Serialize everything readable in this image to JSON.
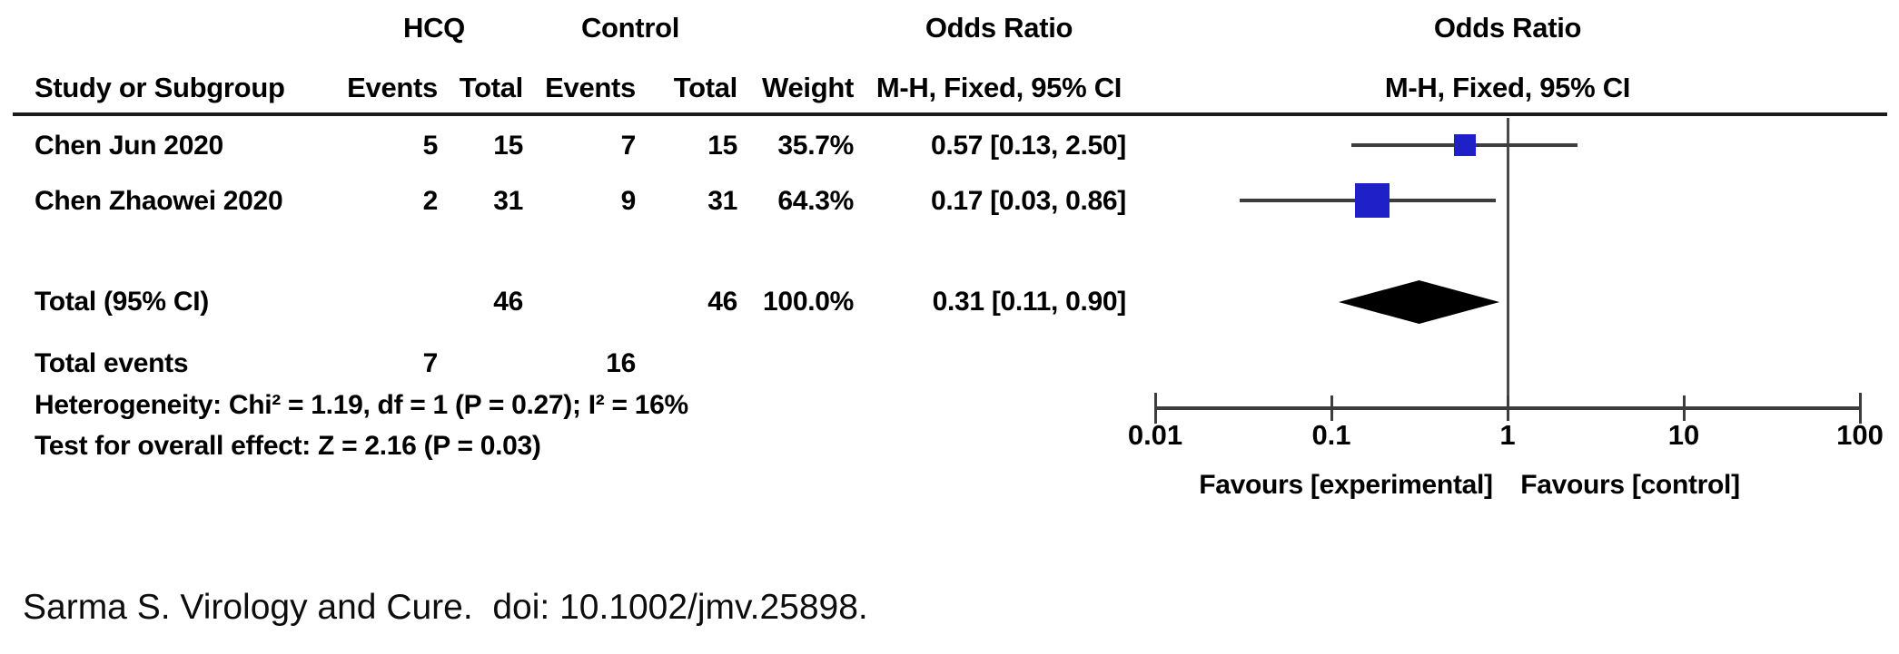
{
  "header": {
    "col_study": "Study or Subgroup",
    "group_hcq": "HCQ",
    "group_control": "Control",
    "col_events_hcq": "Events",
    "col_total_hcq": "Total",
    "col_events_control": "Events",
    "col_total_control": "Total",
    "col_weight": "Weight",
    "or_col_line1": "Odds Ratio",
    "or_col_line2": "M-H, Fixed, 95% CI",
    "plot_line1": "Odds Ratio",
    "plot_line2": "M-H, Fixed, 95% CI"
  },
  "rows": [
    {
      "study": "Chen Jun 2020",
      "hcq_events": "5",
      "hcq_total": "15",
      "control_events": "7",
      "control_total": "15",
      "weight": "35.7%",
      "or_text": "0.57 [0.13, 2.50]"
    },
    {
      "study": "Chen Zhaowei 2020",
      "hcq_events": "2",
      "hcq_total": "31",
      "control_events": "9",
      "control_total": "31",
      "weight": "64.3%",
      "or_text": "0.17 [0.03, 0.86]"
    }
  ],
  "total_row": {
    "label": "Total (95% CI)",
    "hcq_total": "46",
    "control_total": "46",
    "weight": "100.0%",
    "or_text": "0.31 [0.11, 0.90]"
  },
  "total_events_row": {
    "label": "Total events",
    "hcq_events": "7",
    "control_events": "16"
  },
  "stats": {
    "heterogeneity": "Heterogeneity: Chi² = 1.19, df = 1 (P = 0.27); I² = 16%",
    "overall_effect": "Test for overall effect: Z = 2.16 (P = 0.03)"
  },
  "axis": {
    "tick_labels": [
      "0.01",
      "0.1",
      "1",
      "10",
      "100"
    ],
    "favours_left": "Favours [experimental]",
    "favours_right": "Favours [control]"
  },
  "citation": "Sarma S. Virology and Cure.  doi: 10.1002/jmv.25898.",
  "colors": {
    "square": "#2020c8",
    "ci_line": "#3d3d3d",
    "null_line": "#4a4a4a",
    "axis": "#3d3d3d",
    "diamond": "#000000",
    "rule": "#1a1a1a",
    "text": "#000000"
  },
  "chart_data": {
    "type": "forest",
    "title": "Odds Ratio M-H, Fixed, 95% CI",
    "x_scale": "log10",
    "x_ticks": [
      0.01,
      0.1,
      1,
      10,
      100
    ],
    "xlim": [
      0.01,
      100
    ],
    "null_line_x": 1,
    "xlabel_left": "Favours [experimental]",
    "xlabel_right": "Favours [control]",
    "studies": [
      {
        "name": "Chen Jun 2020",
        "or": 0.57,
        "ci_low": 0.13,
        "ci_high": 2.5,
        "weight_pct": 35.7,
        "hcq_events": 5,
        "hcq_total": 15,
        "control_events": 7,
        "control_total": 15
      },
      {
        "name": "Chen Zhaowei 2020",
        "or": 0.17,
        "ci_low": 0.03,
        "ci_high": 0.86,
        "weight_pct": 64.3,
        "hcq_events": 2,
        "hcq_total": 31,
        "control_events": 9,
        "control_total": 31
      }
    ],
    "total": {
      "name": "Total (95% CI)",
      "or": 0.31,
      "ci_low": 0.11,
      "ci_high": 0.9,
      "weight_pct": 100.0,
      "hcq_total": 46,
      "control_total": 46,
      "hcq_events_total": 7,
      "control_events_total": 16
    },
    "heterogeneity": {
      "chi2": 1.19,
      "df": 1,
      "p": 0.27,
      "i2_pct": 16
    },
    "overall_effect": {
      "z": 2.16,
      "p": 0.03
    }
  }
}
